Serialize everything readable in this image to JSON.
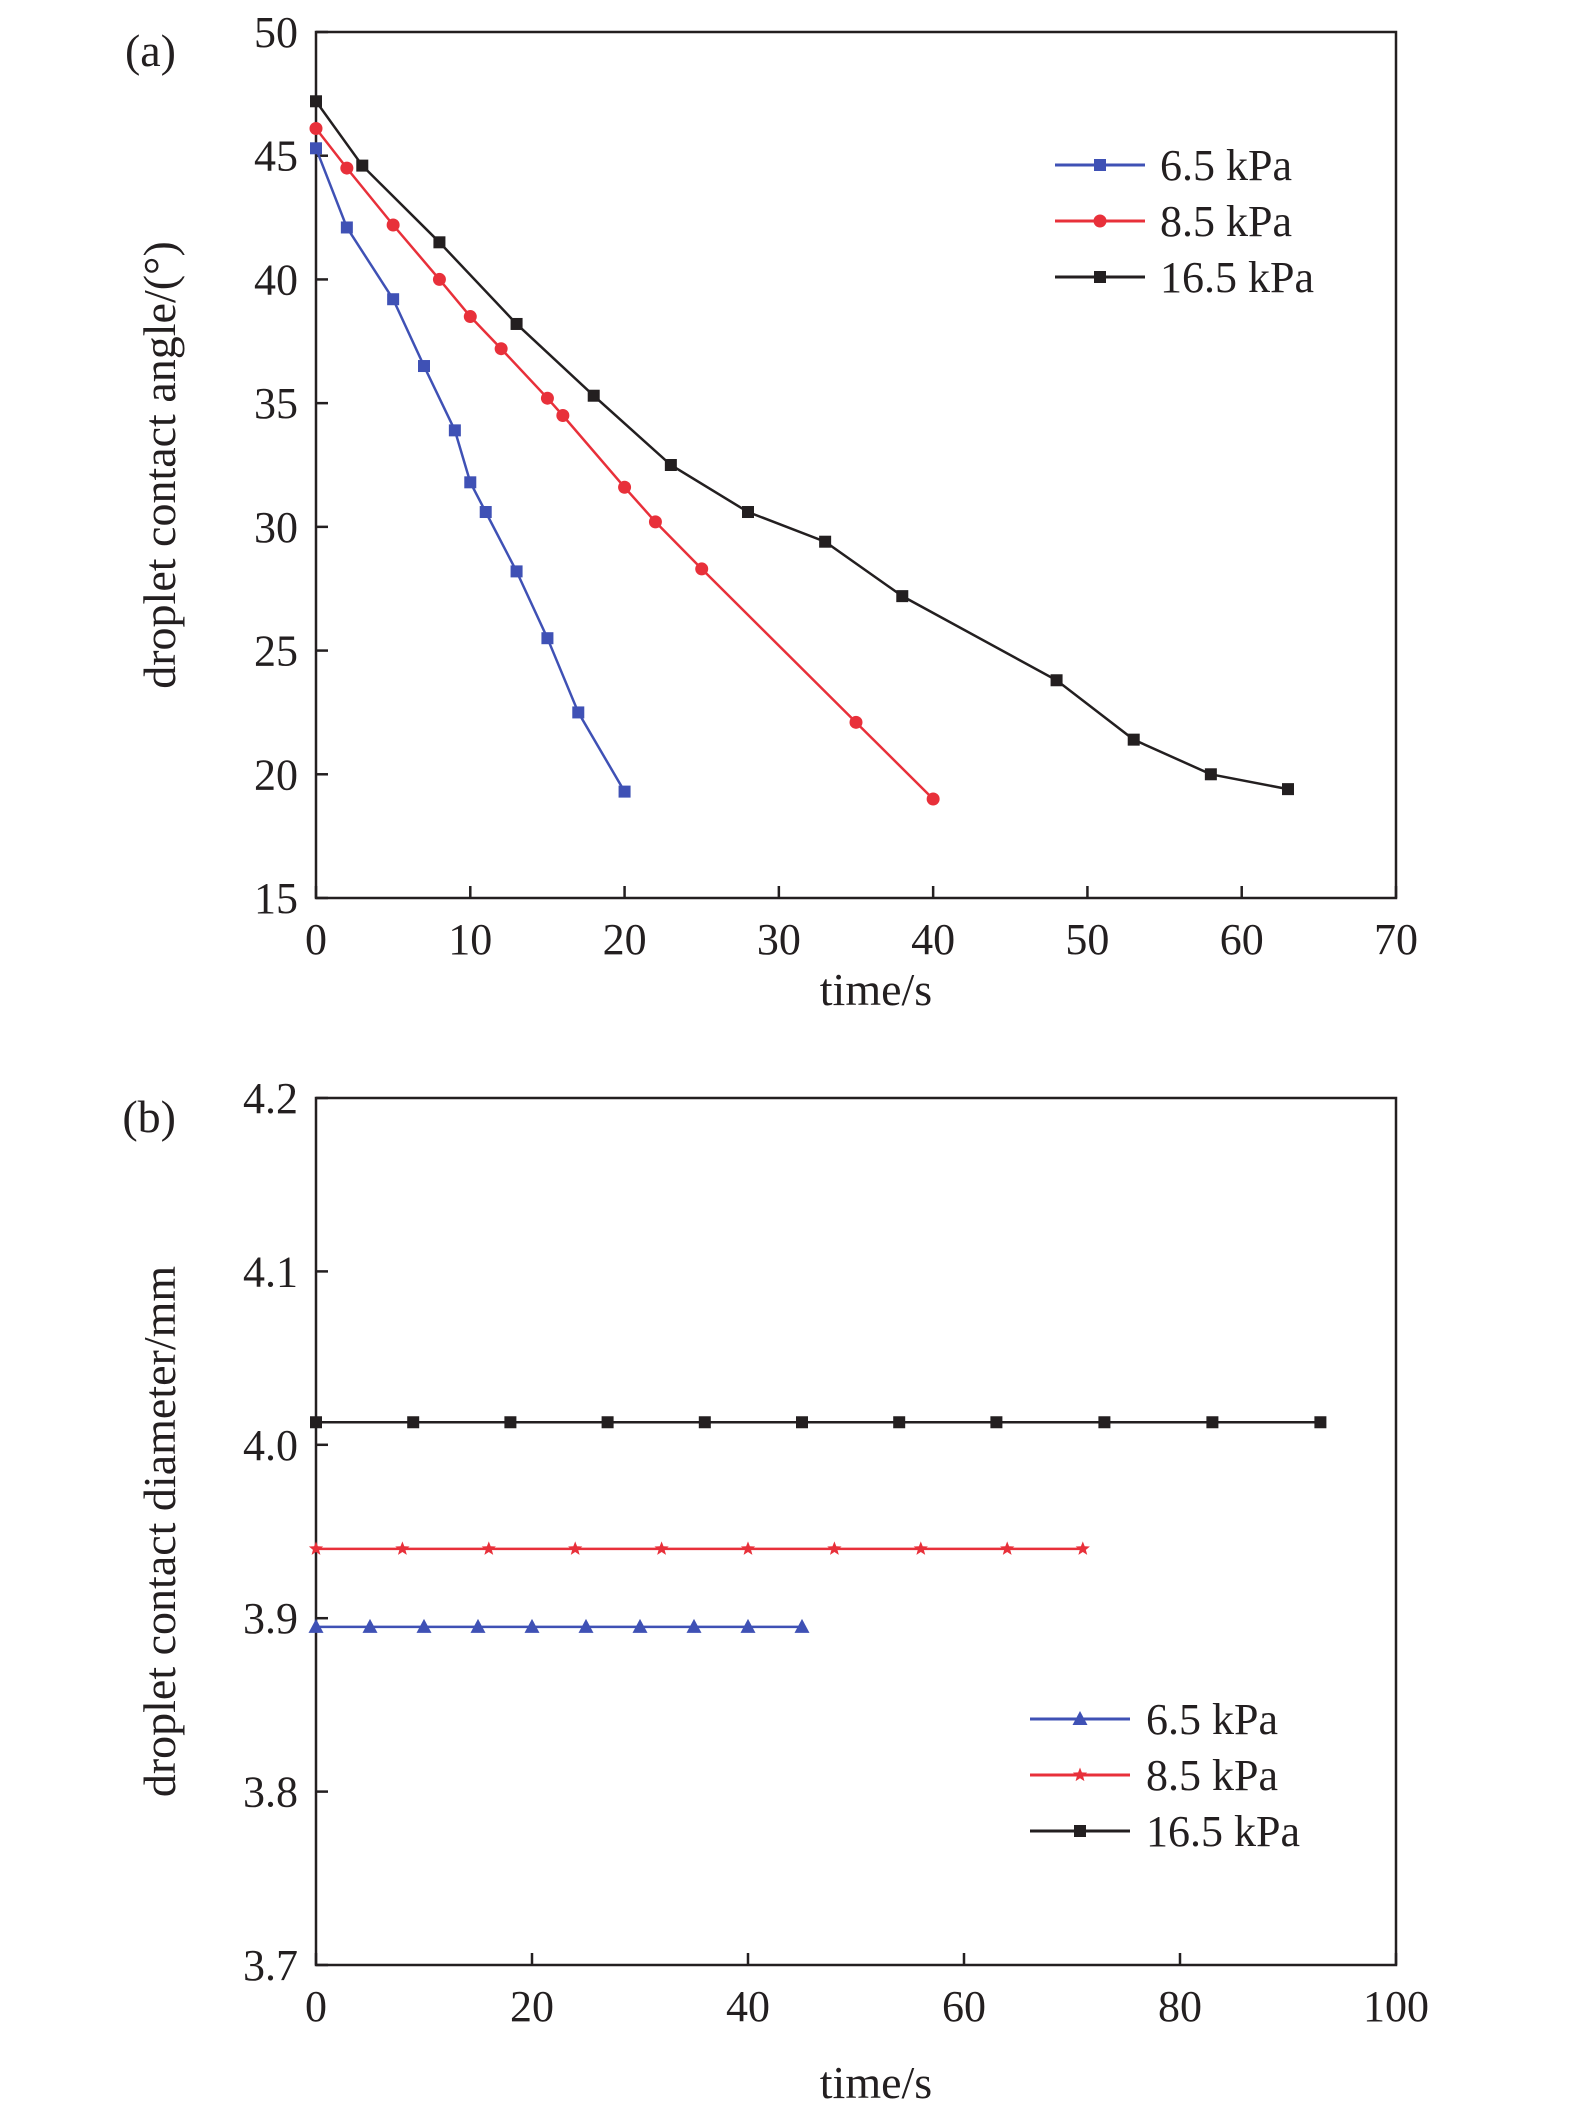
{
  "chart_data": [
    {
      "type": "line",
      "panel_label": "(a)",
      "xlabel": "time/s",
      "ylabel": "droplet contact angle/(°)",
      "xlim": [
        0,
        70
      ],
      "ylim": [
        15,
        50
      ],
      "xticks": [
        0,
        10,
        20,
        30,
        40,
        50,
        60,
        70
      ],
      "yticks": [
        15,
        20,
        25,
        30,
        35,
        40,
        45,
        50
      ],
      "legend_position": "top-right",
      "grid": false,
      "series": [
        {
          "name": "6.5 kPa",
          "color": "#3f51b5",
          "marker": "square",
          "x": [
            0,
            2,
            5,
            7,
            9,
            10,
            11,
            13,
            15,
            17,
            20
          ],
          "y": [
            45.3,
            42.1,
            39.2,
            36.5,
            33.9,
            31.8,
            30.6,
            28.2,
            25.5,
            22.5,
            19.3
          ]
        },
        {
          "name": "8.5 kPa",
          "color": "#e8303a",
          "marker": "circle",
          "x": [
            0,
            2,
            5,
            8,
            10,
            12,
            15,
            16,
            20,
            22,
            25,
            35,
            40
          ],
          "y": [
            46.1,
            44.5,
            42.2,
            40.0,
            38.5,
            37.2,
            35.2,
            34.5,
            31.6,
            30.2,
            28.3,
            22.1,
            19.0
          ]
        },
        {
          "name": "16.5 kPa",
          "color": "#231f20",
          "marker": "square",
          "x": [
            0,
            3,
            8,
            13,
            18,
            23,
            28,
            33,
            38,
            48,
            53,
            58,
            63
          ],
          "y": [
            47.2,
            44.6,
            41.5,
            38.2,
            35.3,
            32.5,
            30.6,
            29.4,
            27.2,
            23.8,
            21.4,
            20.0,
            19.4
          ]
        }
      ]
    },
    {
      "type": "line",
      "panel_label": "(b)",
      "xlabel": "time/s",
      "ylabel": "droplet contact diameter/mm",
      "xlim": [
        0,
        100
      ],
      "ylim": [
        3.7,
        4.2
      ],
      "xticks": [
        0,
        20,
        40,
        60,
        80,
        100
      ],
      "yticks": [
        "3.7",
        "3.8",
        "3.9",
        "4.0",
        "4.1",
        "4.2"
      ],
      "legend_position": "bottom-right",
      "grid": false,
      "series": [
        {
          "name": "6.5 kPa",
          "color": "#3f51b5",
          "marker": "triangle",
          "x": [
            0,
            5,
            10,
            15,
            20,
            25,
            30,
            35,
            40,
            45
          ],
          "y": [
            3.895,
            3.895,
            3.895,
            3.895,
            3.895,
            3.895,
            3.895,
            3.895,
            3.895,
            3.895
          ]
        },
        {
          "name": "8.5 kPa",
          "color": "#e8303a",
          "marker": "star",
          "x": [
            0,
            8,
            16,
            24,
            32,
            40,
            48,
            56,
            64,
            71
          ],
          "y": [
            3.94,
            3.94,
            3.94,
            3.94,
            3.94,
            3.94,
            3.94,
            3.94,
            3.94,
            3.94
          ]
        },
        {
          "name": "16.5 kPa",
          "color": "#231f20",
          "marker": "square",
          "x": [
            0,
            9,
            18,
            27,
            36,
            45,
            54,
            63,
            73,
            83,
            93
          ],
          "y": [
            4.013,
            4.013,
            4.013,
            4.013,
            4.013,
            4.013,
            4.013,
            4.013,
            4.013,
            4.013,
            4.013
          ]
        }
      ]
    }
  ]
}
